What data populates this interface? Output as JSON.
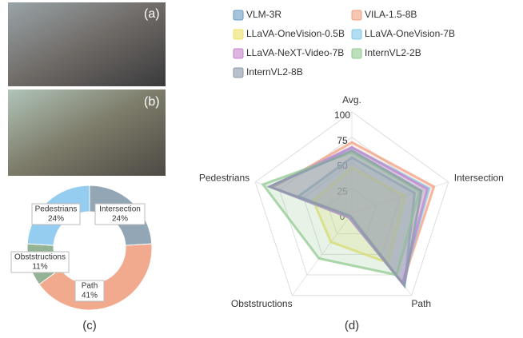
{
  "images": [
    {
      "label": "(a)"
    },
    {
      "label": "(b)"
    }
  ],
  "chart_data": [
    {
      "type": "donut",
      "label": "(c)",
      "categories": [
        "Intersection",
        "Path",
        "Obststructions",
        "Pedestrians"
      ],
      "values": [
        24,
        41,
        11,
        24
      ],
      "value_labels": [
        "24%",
        "41%",
        "11%",
        "24%"
      ],
      "colors": [
        "#93a6b6",
        "#f2aa8e",
        "#94b294",
        "#94cdf0"
      ]
    },
    {
      "type": "radar",
      "label": "(d)",
      "categories": [
        "Avg.",
        "Intersection",
        "Path",
        "Obststructions",
        "Pedestrians"
      ],
      "rlim": [
        0,
        100
      ],
      "rticks": [
        0,
        25,
        50,
        75,
        100
      ],
      "series": [
        {
          "name": "VLM-3R",
          "color": "#6a9cc0",
          "values": [
            55,
            65,
            88,
            5,
            55
          ]
        },
        {
          "name": "VILA-1.5-8B",
          "color": "#f0a080",
          "values": [
            70,
            85,
            85,
            5,
            82
          ]
        },
        {
          "name": "LLaVA-OneVision-0.5B",
          "color": "#ece066",
          "values": [
            45,
            55,
            60,
            35,
            40
          ]
        },
        {
          "name": "LLaVA-OneVision-7B",
          "color": "#80c8e8",
          "values": [
            65,
            80,
            85,
            5,
            85
          ]
        },
        {
          "name": "LLaVA-NeXT-Video-7B",
          "color": "#c484cc",
          "values": [
            65,
            78,
            85,
            5,
            85
          ]
        },
        {
          "name": "InternVL2-2B",
          "color": "#92ca90",
          "values": [
            60,
            70,
            75,
            55,
            92
          ]
        },
        {
          "name": "InternVL2-8B",
          "color": "#8898a8",
          "values": [
            62,
            72,
            88,
            3,
            85
          ]
        }
      ]
    }
  ]
}
